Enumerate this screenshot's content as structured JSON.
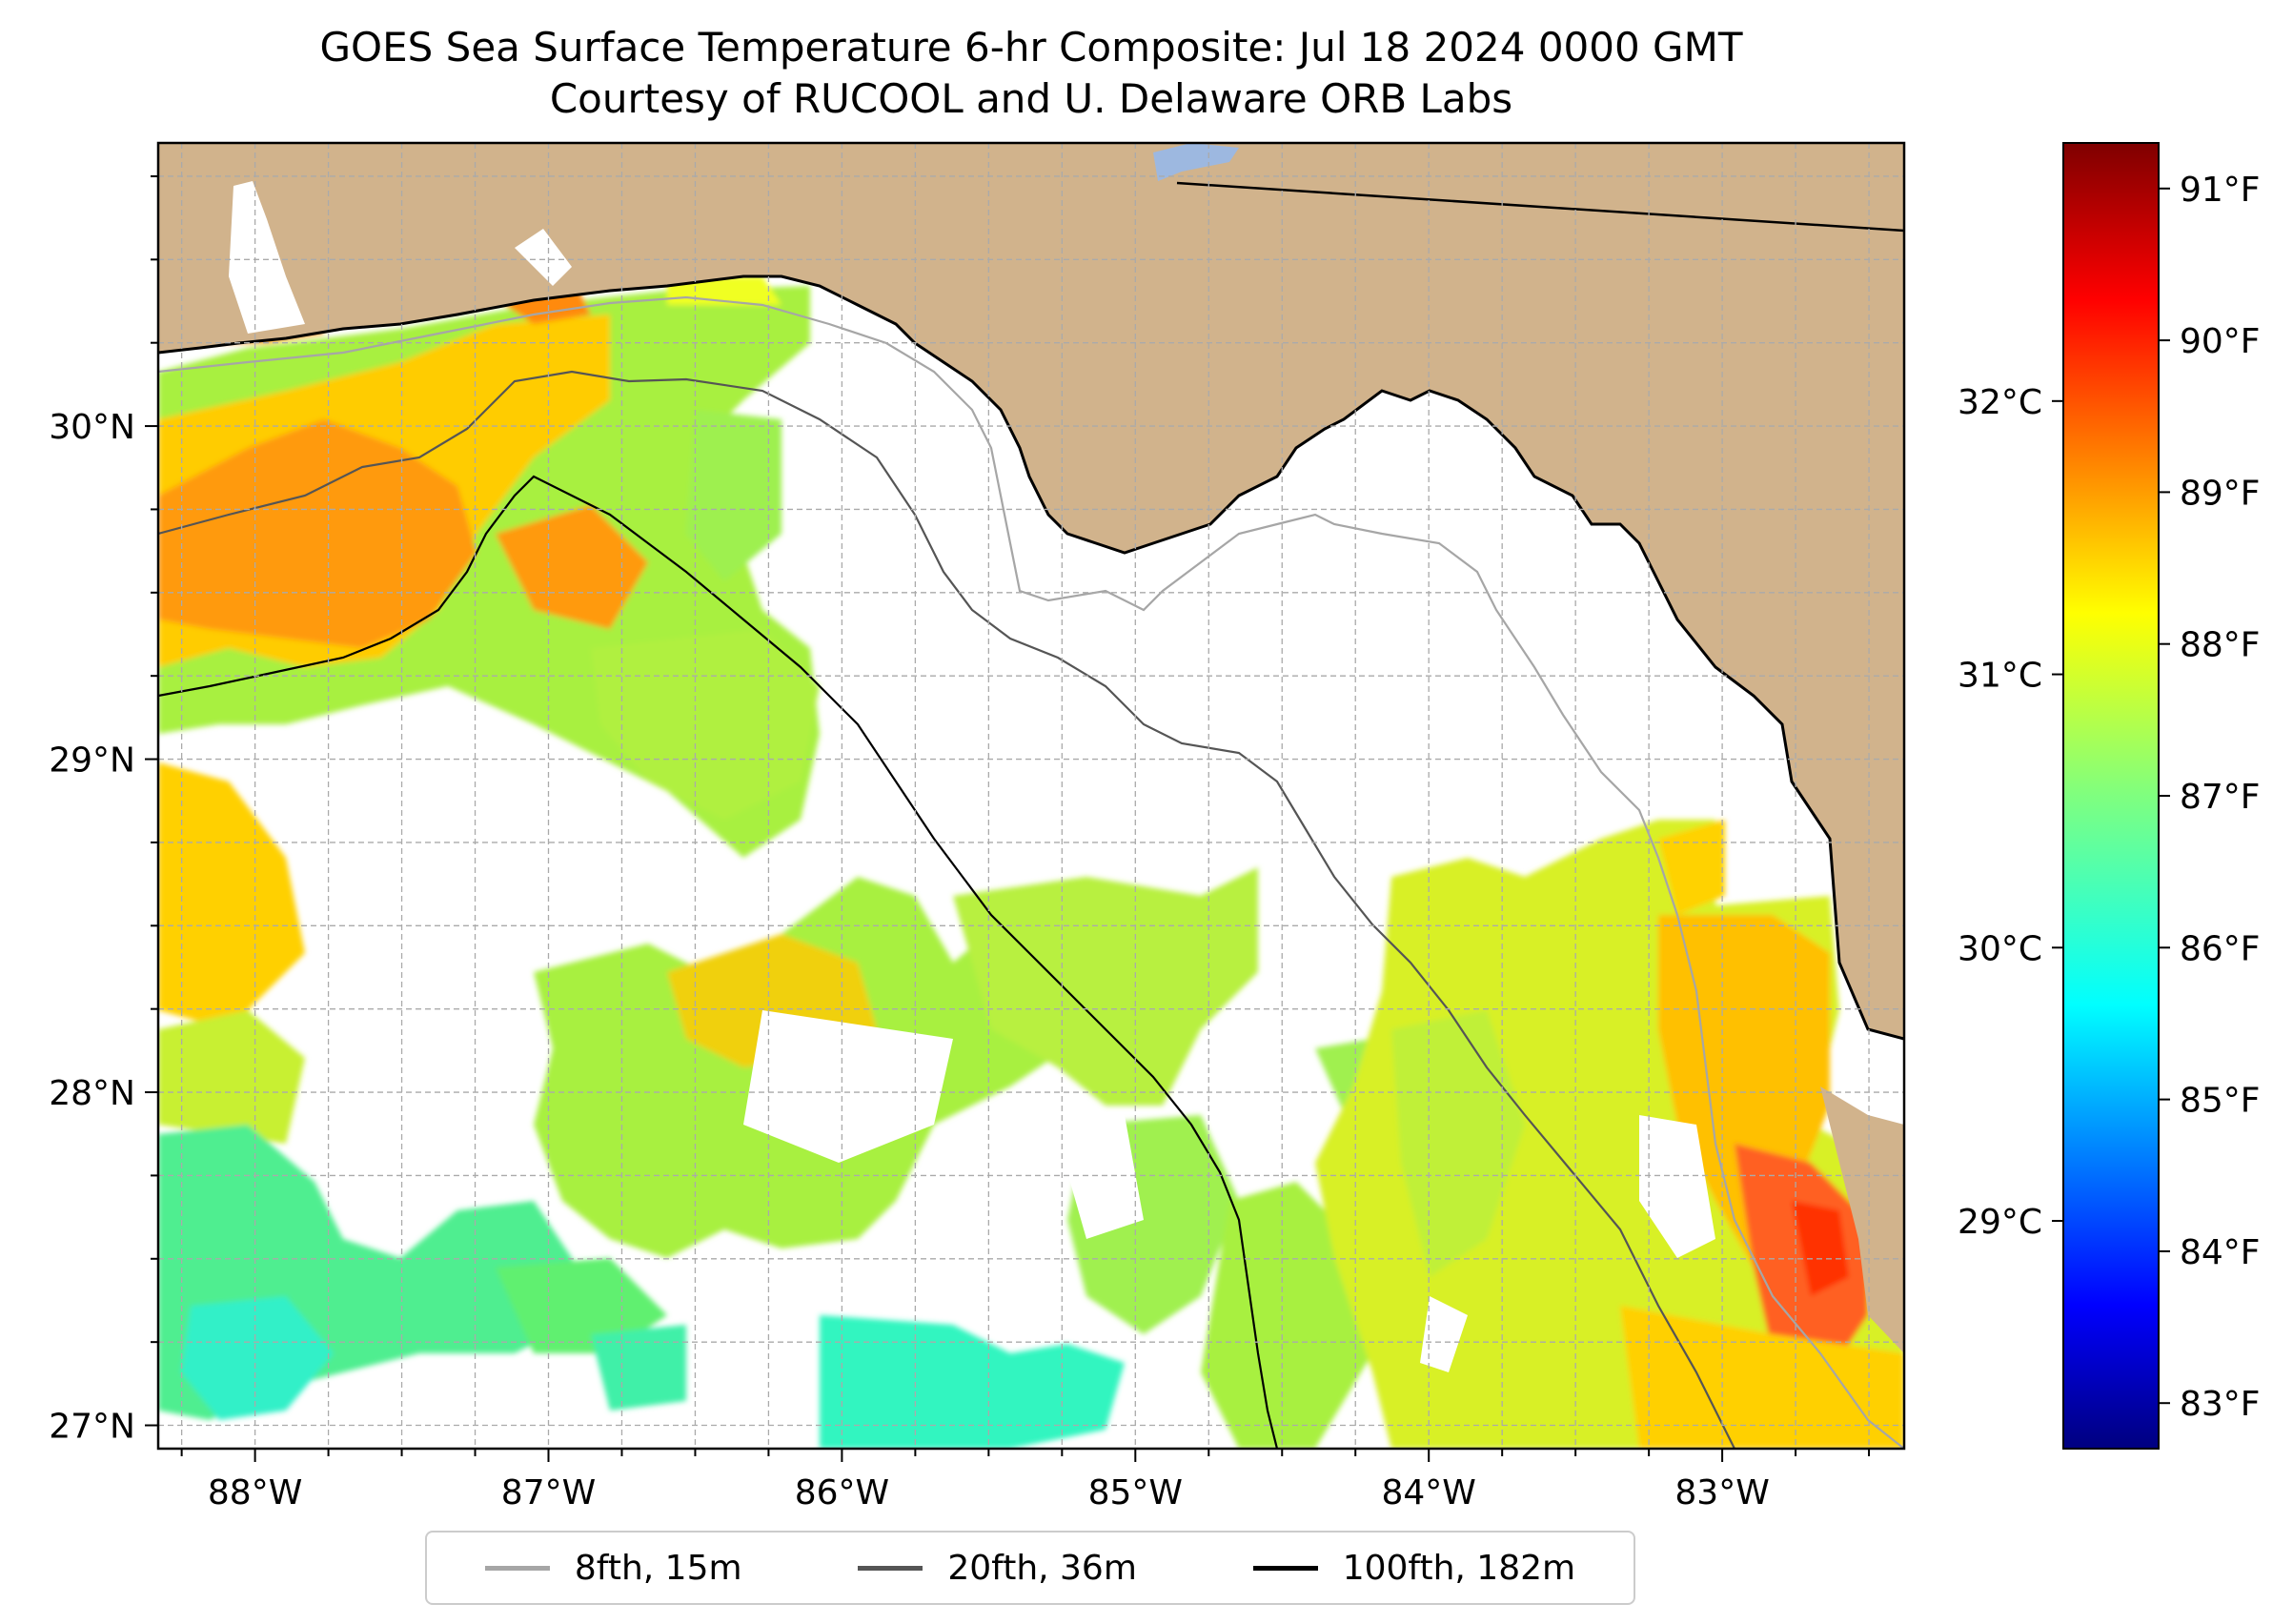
{
  "title": {
    "line1": "GOES Sea Surface Temperature 6-hr Composite: Jul 18 2024 0000 GMT",
    "line2": "Courtesy of RUCOOL and U. Delaware ORB Labs"
  },
  "map": {
    "lon_range": [
      -88.33,
      -82.38
    ],
    "lat_range": [
      26.93,
      30.85
    ],
    "x_ticks": [
      {
        "lon": -88,
        "label": "88°W"
      },
      {
        "lon": -87,
        "label": "87°W"
      },
      {
        "lon": -86,
        "label": "86°W"
      },
      {
        "lon": -85,
        "label": "85°W"
      },
      {
        "lon": -84,
        "label": "84°W"
      },
      {
        "lon": -83,
        "label": "83°W"
      }
    ],
    "y_ticks": [
      {
        "lat": 30,
        "label": "30°N"
      },
      {
        "lat": 29,
        "label": "29°N"
      },
      {
        "lat": 28,
        "label": "28°N"
      },
      {
        "lat": 27,
        "label": "27°N"
      }
    ],
    "gridlines": "dashed every 0.25°",
    "land_color": "#d1b38c",
    "coast_color": "#000000"
  },
  "colorbar": {
    "colormap": "jet",
    "f_ticks": [
      "91°F",
      "90°F",
      "89°F",
      "88°F",
      "87°F",
      "86°F",
      "85°F",
      "84°F",
      "83°F"
    ],
    "c_ticks": [
      "32°C",
      "31°C",
      "30°C",
      "29°C"
    ],
    "f_range": [
      82.7,
      91.3
    ]
  },
  "legend": {
    "items": [
      {
        "label": "8fth, 15m",
        "color": "#a6a6a6"
      },
      {
        "label": "20fth, 36m",
        "color": "#555555"
      },
      {
        "label": "100fth, 182m",
        "color": "#000000"
      }
    ]
  }
}
